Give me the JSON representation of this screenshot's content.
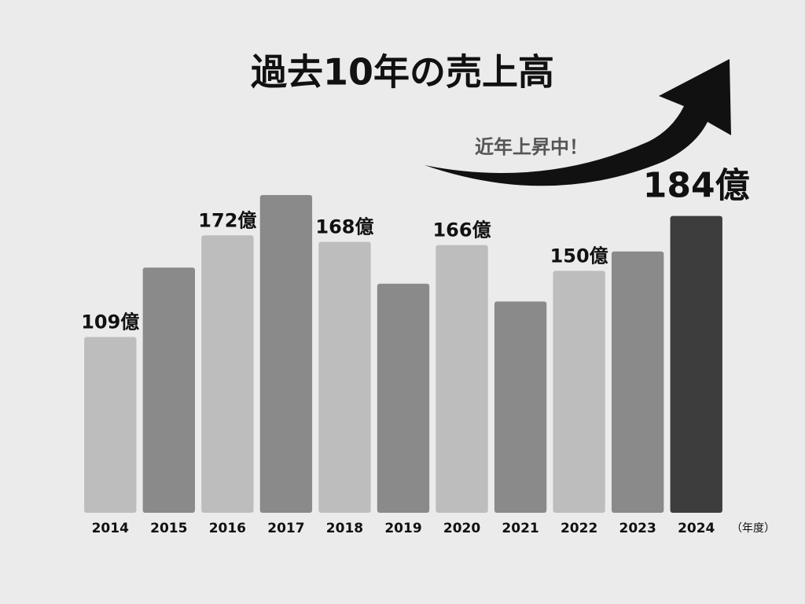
{
  "chart_data": {
    "type": "bar",
    "title": "過去10年の売上高",
    "annotation": "近年上昇中！",
    "x_unit_label": "（年度）",
    "categories": [
      "2014",
      "2015",
      "2016",
      "2017",
      "2018",
      "2019",
      "2020",
      "2021",
      "2022",
      "2023",
      "2024"
    ],
    "values": [
      109,
      152,
      172,
      197,
      168,
      142,
      166,
      131,
      150,
      162,
      184
    ],
    "value_labels": [
      "109億",
      null,
      "172億",
      null,
      "168億",
      null,
      "166億",
      null,
      "150億",
      null,
      "184億"
    ],
    "colors": [
      "#bdbdbd",
      "#8a8a8a",
      "#bdbdbd",
      "#8a8a8a",
      "#bdbdbd",
      "#8a8a8a",
      "#bdbdbd",
      "#8a8a8a",
      "#bdbdbd",
      "#8a8a8a",
      "#3d3d3d"
    ]
  }
}
